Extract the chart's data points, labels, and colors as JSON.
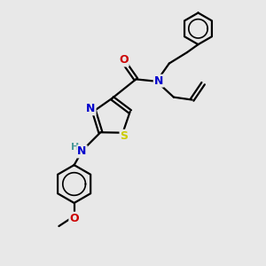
{
  "bg_color": "#e8e8e8",
  "atom_colors": {
    "C": "#000000",
    "N": "#0000cc",
    "O": "#cc0000",
    "S": "#cccc00",
    "H": "#4a9a9a"
  },
  "bond_color": "#000000",
  "bond_width": 1.6,
  "fig_size": [
    3.0,
    3.0
  ],
  "dpi": 100,
  "xlim": [
    0,
    10
  ],
  "ylim": [
    0,
    10
  ]
}
